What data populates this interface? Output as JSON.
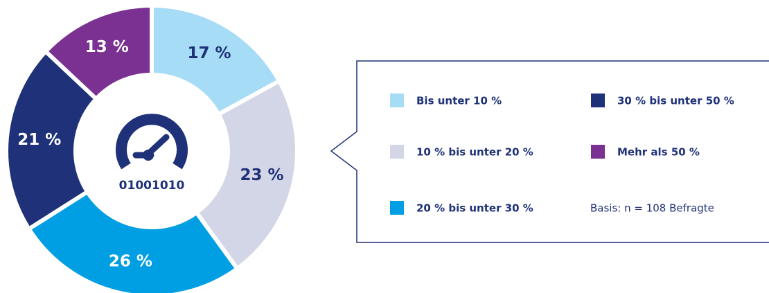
{
  "chart_data": {
    "type": "donut",
    "categories": [
      "Bis unter 10 %",
      "10 % bis unter 20 %",
      "20 % bis unter 30 %",
      "30 % bis unter 50 %",
      "Mehr als 50 %"
    ],
    "values": [
      17,
      23,
      26,
      21,
      13
    ],
    "value_labels": [
      "17 %",
      "23 %",
      "26 %",
      "21 %",
      "13 %"
    ],
    "colors": [
      "#a6dcf5",
      "#d3d6e6",
      "#009fe3",
      "#1f3178",
      "#7b3191"
    ],
    "center_label": "01001010",
    "note": "Basis: n = 108 Befragte"
  }
}
